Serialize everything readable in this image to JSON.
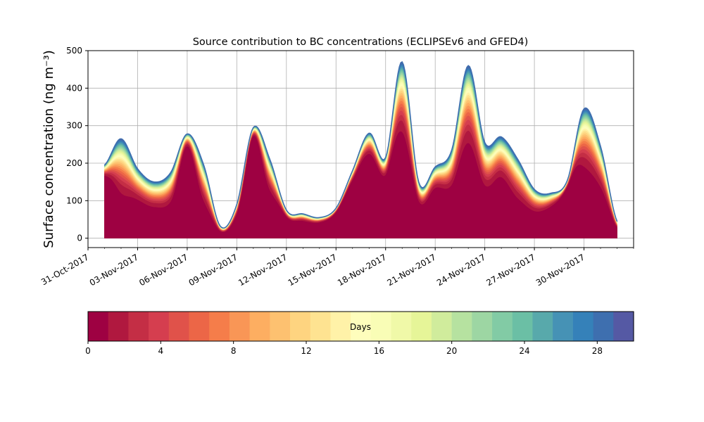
{
  "chart_data": {
    "type": "area",
    "title": "Source contribution to BC concentrations (ECLIPSEv6 and GFED4)",
    "ylabel": "Surface concentration (ng m⁻³)",
    "xlabel": "",
    "xlim": [
      "2017-10-31",
      "2017-12-03"
    ],
    "ylim": [
      -25,
      500
    ],
    "yticks": [
      0,
      100,
      200,
      300,
      400,
      500
    ],
    "xticks": [
      "31-Oct-2017",
      "03-Nov-2017",
      "06-Nov-2017",
      "09-Nov-2017",
      "12-Nov-2017",
      "15-Nov-2017",
      "18-Nov-2017",
      "21-Nov-2017",
      "24-Nov-2017",
      "27-Nov-2017",
      "30-Nov-2017"
    ],
    "grid": true,
    "stacking": "cumulative contribution by source age (days 0–30)",
    "total": {
      "x": [
        "2017-11-01",
        "2017-11-02",
        "2017-11-03",
        "2017-11-04",
        "2017-11-05",
        "2017-11-06",
        "2017-11-07",
        "2017-11-08",
        "2017-11-09",
        "2017-11-10",
        "2017-11-11",
        "2017-11-12",
        "2017-11-13",
        "2017-11-14",
        "2017-11-15",
        "2017-11-16",
        "2017-11-17",
        "2017-11-18",
        "2017-11-19",
        "2017-11-20",
        "2017-11-21",
        "2017-11-22",
        "2017-11-23",
        "2017-11-24",
        "2017-11-25",
        "2017-11-26",
        "2017-11-27",
        "2017-11-28",
        "2017-11-29",
        "2017-11-30",
        "2017-12-01",
        "2017-12-02"
      ],
      "values": [
        195,
        265,
        185,
        150,
        175,
        278,
        195,
        32,
        90,
        295,
        210,
        75,
        65,
        55,
        80,
        180,
        280,
        215,
        470,
        150,
        190,
        235,
        460,
        255,
        270,
        210,
        130,
        120,
        155,
        345,
        245,
        45
      ]
    },
    "age_band_fraction": [
      0.85,
      0.45,
      0.55,
      0.55,
      0.55,
      0.88,
      0.5,
      0.55,
      0.7,
      0.92,
      0.6,
      0.75,
      0.7,
      0.75,
      0.85,
      0.85,
      0.8,
      0.78,
      0.6,
      0.65,
      0.7,
      0.6,
      0.55,
      0.55,
      0.6,
      0.5,
      0.55,
      0.7,
      0.88,
      0.55,
      0.55,
      0.6
    ]
  },
  "colorbar": {
    "label": "Days",
    "ticks": [
      "0",
      "4",
      "8",
      "12",
      "16",
      "20",
      "24",
      "28"
    ],
    "range": [
      0,
      30
    ],
    "colors": [
      "#9e0142",
      "#b0183f",
      "#c42e45",
      "#d53e4f",
      "#e0524a",
      "#ec6647",
      "#f57d4a",
      "#f99656",
      "#fdae61",
      "#fdc170",
      "#fed480",
      "#fee391",
      "#fff2a8",
      "#fefdbc",
      "#f9fdb6",
      "#f0f9a8",
      "#e6f598",
      "#d0ec9c",
      "#b6e2a0",
      "#9dd6a3",
      "#82cba5",
      "#6bbfa5",
      "#58a9ab",
      "#4692b5",
      "#3581b9",
      "#3e6faf",
      "#5559a4"
    ]
  }
}
